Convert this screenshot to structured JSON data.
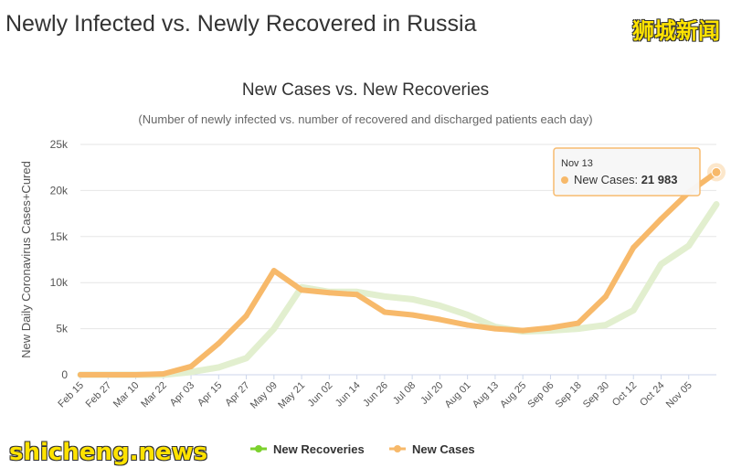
{
  "header": {
    "title": "Newly Infected vs. Newly Recovered in Russia",
    "brand_cn": "狮城新闻"
  },
  "watermark": "shicheng.news",
  "colors": {
    "new_cases": "#f7b96a",
    "new_recoveries": "#e2efcf",
    "legend_recoveries": "#7cd12d",
    "legend_cases": "#f7b96a"
  },
  "chart_data": {
    "type": "line",
    "title": "New Cases vs. New Recoveries",
    "subtitle": "(Number of newly infected vs. number of recovered and discharged patients each day)",
    "ylabel": "New Daily Coronavirus Cases+Cured",
    "xlabel": "",
    "ylim": [
      0,
      25000
    ],
    "y_ticks": [
      "0",
      "5k",
      "10k",
      "15k",
      "20k",
      "25k"
    ],
    "categories": [
      "Feb 15",
      "Feb 27",
      "Mar 10",
      "Mar 22",
      "Apr 03",
      "Apr 15",
      "Apr 27",
      "May 09",
      "May 21",
      "Jun 02",
      "Jun 14",
      "Jun 26",
      "Jul 08",
      "Jul 20",
      "Aug 01",
      "Aug 13",
      "Aug 25",
      "Sep 06",
      "Sep 18",
      "Sep 30",
      "Oct 12",
      "Oct 24",
      "Nov 05",
      "Nov 13"
    ],
    "grid": true,
    "legend_position": "bottom",
    "series": [
      {
        "name": "New Recoveries",
        "values": [
          0,
          0,
          0,
          0,
          300,
          800,
          1800,
          5000,
          9500,
          9000,
          9000,
          8500,
          8200,
          7500,
          6500,
          5200,
          4700,
          4800,
          5000,
          5400,
          7000,
          12000,
          14000,
          18500
        ]
      },
      {
        "name": "New Cases",
        "values": [
          0,
          0,
          0,
          100,
          900,
          3400,
          6400,
          11300,
          9200,
          8900,
          8700,
          6800,
          6500,
          6000,
          5400,
          5000,
          4800,
          5100,
          5600,
          8500,
          13800,
          16900,
          19800,
          21983
        ]
      }
    ],
    "tooltip": {
      "date": "Nov 13",
      "series": "New Cases",
      "value": "21 983"
    }
  }
}
